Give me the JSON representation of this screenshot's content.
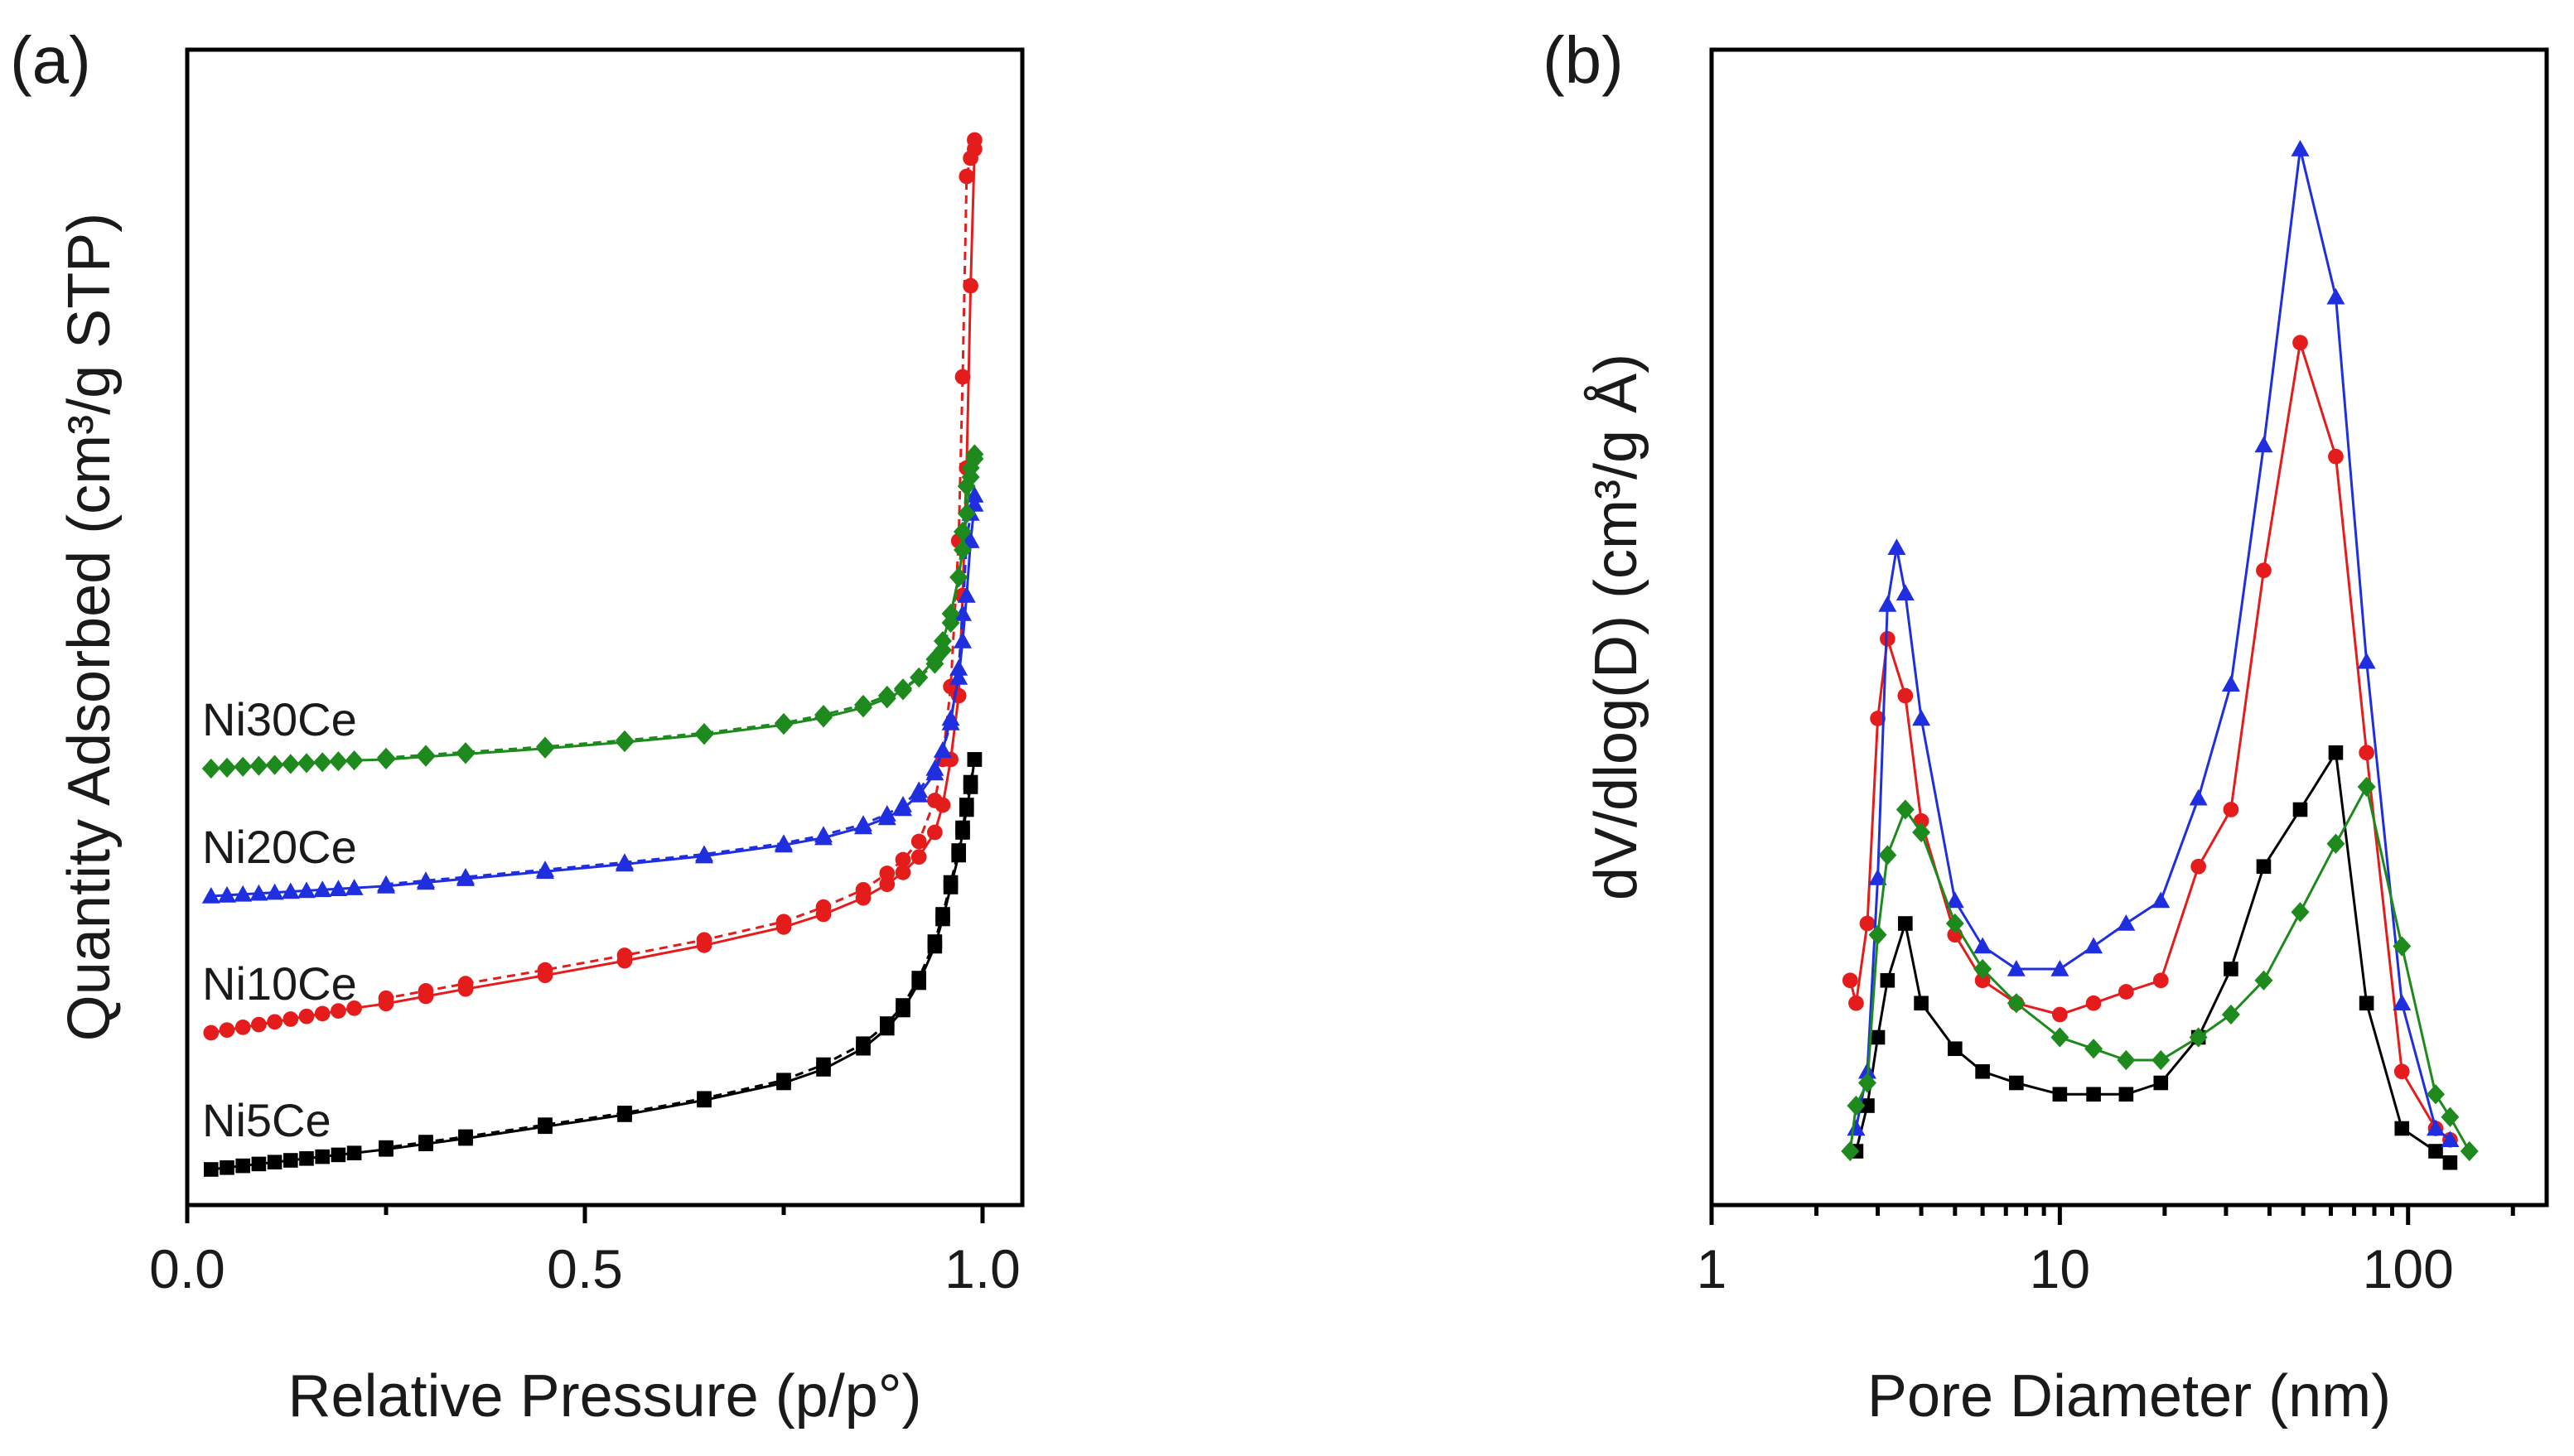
{
  "chart_data": [
    {
      "panel": "(a)",
      "type": "line",
      "subtype": "adsorption-desorption isotherm",
      "xlabel": "Relative Pressure (p/p°)",
      "ylabel": "Quantity Adsorbed (cm³/g STP)",
      "xlim": [
        0.0,
        1.05
      ],
      "ylim": [
        0,
        125
      ],
      "xticks": [
        "0.0",
        "0.5",
        "1.0"
      ],
      "ytick_labels_shown": false,
      "legend": "inline labels on the left, above each curve",
      "series": [
        {
          "name": "Ni5Ce",
          "color": "#000000",
          "marker": "square",
          "adsorption": {
            "x": [
              0.03,
              0.05,
              0.07,
              0.09,
              0.11,
              0.13,
              0.15,
              0.17,
              0.19,
              0.21,
              0.25,
              0.3,
              0.35,
              0.45,
              0.55,
              0.65,
              0.75,
              0.8,
              0.85,
              0.88,
              0.9,
              0.92,
              0.94,
              0.95,
              0.96,
              0.97,
              0.975,
              0.98,
              0.985,
              0.99
            ],
            "y": [
              3.0,
              3.2,
              3.4,
              3.6,
              3.8,
              4.0,
              4.2,
              4.4,
              4.6,
              4.8,
              5.2,
              5.8,
              6.4,
              7.7,
              9.0,
              10.6,
              12.5,
              14.0,
              16.3,
              18.5,
              20.5,
              23.5,
              27.5,
              30.5,
              34.0,
              37.5,
              40.0,
              42.5,
              45.0,
              48.0
            ]
          },
          "desorption": {
            "x": [
              0.99,
              0.985,
              0.98,
              0.975,
              0.97,
              0.96,
              0.95,
              0.94,
              0.92,
              0.9,
              0.88,
              0.85,
              0.8,
              0.75,
              0.65,
              0.55,
              0.45,
              0.35,
              0.3,
              0.25
            ],
            "y": [
              48.0,
              45.5,
              43.0,
              40.5,
              38.0,
              34.5,
              31.0,
              28.0,
              24.0,
              21.0,
              19.0,
              16.8,
              14.5,
              12.8,
              10.8,
              9.2,
              7.9,
              6.6,
              6.0,
              5.4
            ]
          }
        },
        {
          "name": "Ni10Ce",
          "color": "#e51c1c",
          "marker": "circle",
          "adsorption": {
            "x": [
              0.03,
              0.05,
              0.07,
              0.09,
              0.11,
              0.13,
              0.15,
              0.17,
              0.19,
              0.21,
              0.25,
              0.3,
              0.35,
              0.45,
              0.55,
              0.65,
              0.75,
              0.8,
              0.85,
              0.88,
              0.9,
              0.92,
              0.94,
              0.95,
              0.96,
              0.97,
              0.975,
              0.98,
              0.985,
              0.99
            ],
            "y": [
              18.0,
              18.3,
              18.6,
              18.9,
              19.2,
              19.5,
              19.8,
              20.1,
              20.4,
              20.7,
              21.2,
              22.0,
              22.8,
              24.3,
              25.9,
              27.6,
              29.6,
              31.0,
              32.8,
              34.3,
              35.6,
              37.3,
              40.0,
              43.0,
              48.0,
              55.0,
              66.0,
              80.0,
              100.0,
              115.0
            ]
          },
          "desorption": {
            "x": [
              0.99,
              0.985,
              0.98,
              0.975,
              0.97,
              0.96,
              0.95,
              0.94,
              0.92,
              0.9,
              0.88,
              0.85,
              0.8,
              0.75,
              0.65,
              0.55,
              0.45,
              0.35,
              0.3,
              0.25
            ],
            "y": [
              116.0,
              114.0,
              112.0,
              90.0,
              72.0,
              56.0,
              48.0,
              43.5,
              39.0,
              37.0,
              35.5,
              33.7,
              31.8,
              30.2,
              28.2,
              26.5,
              24.9,
              23.4,
              22.6,
              21.8
            ]
          }
        },
        {
          "name": "Ni20Ce",
          "color": "#1f2fe0",
          "marker": "triangle",
          "adsorption": {
            "x": [
              0.03,
              0.05,
              0.07,
              0.09,
              0.11,
              0.13,
              0.15,
              0.17,
              0.19,
              0.21,
              0.25,
              0.3,
              0.35,
              0.45,
              0.55,
              0.65,
              0.75,
              0.8,
              0.85,
              0.88,
              0.9,
              0.92,
              0.94,
              0.95,
              0.96,
              0.97,
              0.975,
              0.98,
              0.985,
              0.99
            ],
            "y": [
              33.0,
              33.1,
              33.2,
              33.3,
              33.4,
              33.5,
              33.6,
              33.7,
              33.8,
              33.9,
              34.1,
              34.5,
              34.9,
              35.7,
              36.5,
              37.4,
              38.6,
              39.4,
              40.6,
              41.6,
              42.6,
              44.1,
              46.5,
              49.0,
              52.5,
              57.0,
              61.0,
              66.0,
              72.0,
              76.0
            ]
          },
          "desorption": {
            "x": [
              0.99,
              0.985,
              0.98,
              0.975,
              0.97,
              0.96,
              0.95,
              0.94,
              0.92,
              0.9,
              0.88,
              0.85,
              0.8,
              0.75,
              0.65,
              0.55,
              0.45,
              0.35,
              0.3,
              0.25
            ],
            "y": [
              77.0,
              75.0,
              72.0,
              64.0,
              58.0,
              52.0,
              49.0,
              47.0,
              44.6,
              43.0,
              42.0,
              40.9,
              39.7,
              38.8,
              37.6,
              36.7,
              35.9,
              35.1,
              34.7,
              34.3
            ]
          }
        },
        {
          "name": "Ni30Ce",
          "color": "#1e8a1e",
          "marker": "diamond",
          "adsorption": {
            "x": [
              0.03,
              0.05,
              0.07,
              0.09,
              0.11,
              0.13,
              0.15,
              0.17,
              0.19,
              0.21,
              0.25,
              0.3,
              0.35,
              0.45,
              0.55,
              0.65,
              0.75,
              0.8,
              0.85,
              0.88,
              0.9,
              0.92,
              0.94,
              0.95,
              0.96,
              0.97,
              0.975,
              0.98,
              0.985,
              0.99
            ],
            "y": [
              47.0,
              47.1,
              47.2,
              47.3,
              47.4,
              47.5,
              47.6,
              47.7,
              47.8,
              47.9,
              48.0,
              48.3,
              48.6,
              49.2,
              49.9,
              50.7,
              51.8,
              52.6,
              53.7,
              54.7,
              55.6,
              57.0,
              59.0,
              61.0,
              64.0,
              68.0,
              71.0,
              75.0,
              79.0,
              81.0
            ]
          },
          "desorption": {
            "x": [
              0.99,
              0.985,
              0.98,
              0.975,
              0.97,
              0.96,
              0.95,
              0.94,
              0.92,
              0.9,
              0.88,
              0.85,
              0.8,
              0.75,
              0.65,
              0.55,
              0.45,
              0.35,
              0.3,
              0.25
            ],
            "y": [
              81.5,
              80.0,
              78.0,
              73.0,
              68.0,
              63.0,
              60.0,
              58.5,
              57.0,
              55.8,
              55.0,
              54.0,
              52.9,
              52.0,
              50.9,
              50.1,
              49.4,
              48.8,
              48.5,
              48.2
            ]
          }
        }
      ]
    },
    {
      "panel": "(b)",
      "type": "line",
      "subtype": "pore size distribution",
      "xlabel": "Pore Diameter (nm)",
      "ylabel": "dV/dlog(D) (cm³/g Å)",
      "xscale": "log",
      "xlim": [
        1,
        250
      ],
      "ylim": [
        0,
        1.0
      ],
      "xticks": [
        "1",
        "10",
        "100"
      ],
      "ytick_labels_shown": false,
      "series": [
        {
          "name": "Ni5Ce",
          "color": "#000000",
          "marker": "square",
          "x": [
            2.6,
            2.8,
            3.0,
            3.2,
            3.6,
            4.0,
            5.0,
            6.0,
            7.5,
            10.0,
            12.5,
            15.5,
            19.5,
            25.0,
            31.0,
            38.5,
            49.0,
            62.0,
            76.0,
            96.0,
            120.0,
            132.0
          ],
          "y": [
            0.04,
            0.08,
            0.14,
            0.19,
            0.24,
            0.17,
            0.13,
            0.11,
            0.1,
            0.09,
            0.09,
            0.09,
            0.1,
            0.14,
            0.2,
            0.29,
            0.34,
            0.39,
            0.17,
            0.06,
            0.04,
            0.03
          ]
        },
        {
          "name": "Ni10Ce",
          "color": "#e51c1c",
          "marker": "circle",
          "x": [
            2.5,
            2.6,
            2.8,
            3.0,
            3.2,
            3.6,
            4.0,
            5.0,
            6.0,
            7.5,
            10.0,
            12.5,
            15.5,
            19.5,
            25.0,
            31.0,
            38.5,
            49.0,
            62.0,
            76.0,
            96.0,
            120.0,
            132.0
          ],
          "y": [
            0.19,
            0.17,
            0.24,
            0.42,
            0.49,
            0.44,
            0.33,
            0.23,
            0.19,
            0.17,
            0.16,
            0.17,
            0.18,
            0.19,
            0.29,
            0.34,
            0.55,
            0.75,
            0.65,
            0.39,
            0.11,
            0.06,
            0.05
          ]
        },
        {
          "name": "Ni20Ce",
          "color": "#1f2fe0",
          "marker": "triangle",
          "x": [
            2.6,
            2.8,
            3.0,
            3.2,
            3.4,
            3.6,
            4.0,
            5.0,
            6.0,
            7.5,
            10.0,
            12.5,
            15.5,
            19.5,
            25.0,
            31.0,
            38.5,
            49.0,
            62.0,
            76.0,
            96.0,
            120.0,
            132.0
          ],
          "y": [
            0.06,
            0.11,
            0.28,
            0.52,
            0.57,
            0.53,
            0.42,
            0.26,
            0.22,
            0.2,
            0.2,
            0.22,
            0.24,
            0.26,
            0.35,
            0.45,
            0.66,
            0.92,
            0.79,
            0.47,
            0.17,
            0.06,
            0.05
          ]
        },
        {
          "name": "Ni30Ce",
          "color": "#1e8a1e",
          "marker": "diamond",
          "x": [
            2.5,
            2.6,
            2.8,
            3.0,
            3.2,
            3.6,
            4.0,
            5.0,
            6.0,
            7.5,
            10.0,
            12.5,
            15.5,
            19.5,
            25.0,
            31.0,
            38.5,
            49.0,
            62.0,
            76.0,
            96.0,
            120.0,
            132.0,
            150.0
          ],
          "y": [
            0.04,
            0.08,
            0.1,
            0.23,
            0.3,
            0.34,
            0.32,
            0.24,
            0.2,
            0.17,
            0.14,
            0.13,
            0.12,
            0.12,
            0.14,
            0.16,
            0.19,
            0.25,
            0.31,
            0.36,
            0.22,
            0.09,
            0.07,
            0.04
          ]
        }
      ]
    }
  ]
}
